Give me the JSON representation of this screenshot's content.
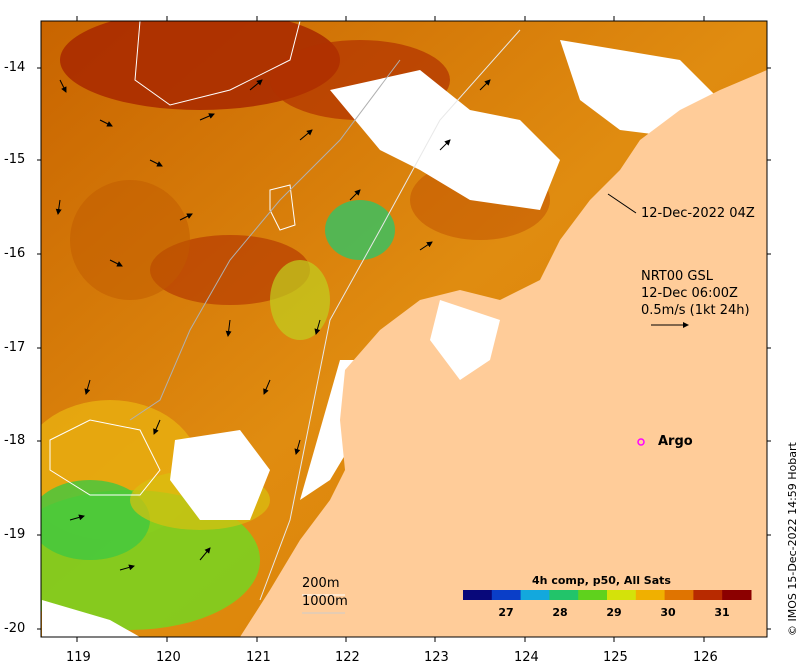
{
  "map": {
    "timestamp_label": "12-Dec-2022 04Z",
    "current_source": "NRT00 GSL",
    "current_time": "12-Dec 06:00Z",
    "current_scale": "0.5m/s (1kt 24h)",
    "argo_label": "Argo",
    "contour_200": "200m",
    "contour_1000": "1000m",
    "credit": "© IMOS 15-Dec-2022 14:59 Hobart",
    "lat_ticks": [
      "-14",
      "-15",
      "-16",
      "-17",
      "-18",
      "-19",
      "-20"
    ],
    "lon_ticks": [
      "119",
      "120",
      "121",
      "122",
      "123",
      "124",
      "125",
      "126"
    ]
  },
  "colorbar": {
    "title": "4h comp, p50, All Sats",
    "ticks": [
      "27",
      "28",
      "29",
      "30",
      "31"
    ],
    "colors": [
      "#08087a",
      "#0a3ec8",
      "#13a8dd",
      "#22c46a",
      "#5fd21d",
      "#d4e20a",
      "#f0b000",
      "#e07400",
      "#b82a00",
      "#8c0000"
    ]
  },
  "colors": {
    "land": "#ffcc99",
    "cloud": "#ffffff",
    "argo": "#ff00ff"
  }
}
